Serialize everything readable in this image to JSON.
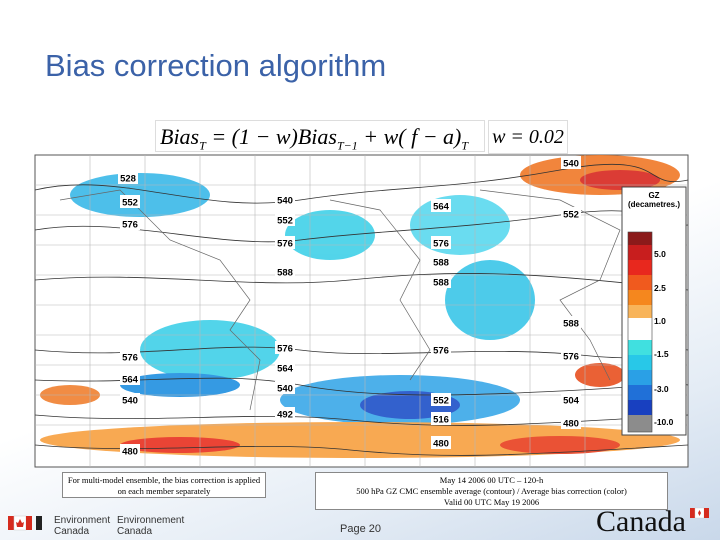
{
  "header": {
    "title": "Bias correction algorithm"
  },
  "formula": {
    "parts": [
      "Bias",
      "T",
      " = (1 − w)Bias",
      "T−1",
      " + w( f − a)",
      "T"
    ],
    "weight": "w = 0.02"
  },
  "map": {
    "contour_labels": [
      "528",
      "552",
      "576",
      "540",
      "552",
      "576",
      "588",
      "564",
      "576",
      "588",
      "588",
      "540",
      "552",
      "588",
      "576",
      "564",
      "540",
      "576",
      "564",
      "540",
      "492",
      "576",
      "552",
      "516",
      "480",
      "576",
      "504",
      "480",
      "480"
    ],
    "legend": {
      "title": "GZ (decametres.)",
      "ticks": [
        "5.0",
        "2.5",
        "1.0",
        "-1.5",
        "-3.0",
        "-10.0"
      ]
    }
  },
  "captions": {
    "left": "For multi-model ensemble, the bias correction is applied on each member separately",
    "right": [
      "May 14 2006 00 UTC – 120-h",
      "500 hPa GZ CMC ensemble average (contour) / Average bias correction (color)",
      "Valid 00 UTC May 19 2006"
    ]
  },
  "footer": {
    "org_en": [
      "Environment",
      "Canada"
    ],
    "org_fr": [
      "Environnement",
      "Canada"
    ],
    "page": "Page 20",
    "wordmark": "Canada"
  }
}
